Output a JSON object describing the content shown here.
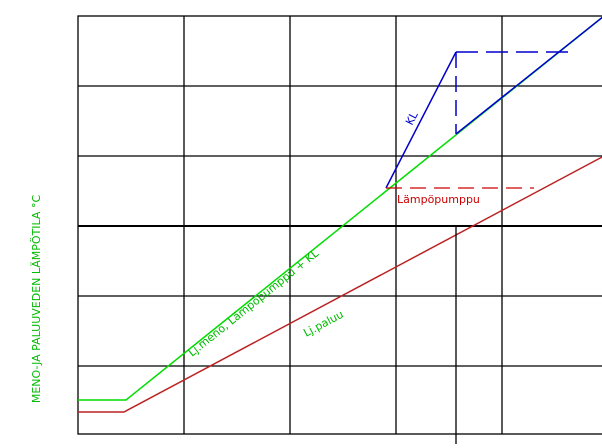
{
  "diagram": {
    "y_axis_label": "MENO-JA PALUUVEDEN LÄMPÖTILA °C",
    "labels": {
      "kl": "KL",
      "heat_pump": "Lämpöpumppu",
      "supply": "Lj.meno, Lämpöpumppu + KL",
      "return": "Lj.paluu"
    },
    "colors": {
      "grid": "#000000",
      "kl": "#0000cc",
      "heat_pump": "#cc0000",
      "supply": "#00dd00",
      "return": "#bb2222"
    }
  }
}
